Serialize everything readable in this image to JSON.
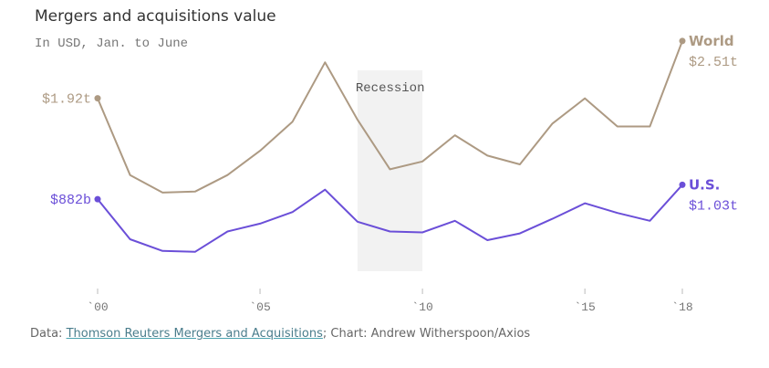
{
  "chart_data": {
    "type": "line",
    "title": "Mergers and acquisitions value",
    "subtitle": "In USD, Jan. to June",
    "x": [
      2000,
      2001,
      2002,
      2003,
      2004,
      2005,
      2006,
      2007,
      2008,
      2009,
      2010,
      2011,
      2012,
      2013,
      2014,
      2015,
      2016,
      2017,
      2018
    ],
    "xlim": [
      2000,
      2018
    ],
    "ylim": [
      0,
      2.8
    ],
    "x_ticks": [
      {
        "value": 2000,
        "label": "`00"
      },
      {
        "value": 2005,
        "label": "`05"
      },
      {
        "value": 2010,
        "label": "`10"
      },
      {
        "value": 2015,
        "label": "`15"
      },
      {
        "value": 2018,
        "label": "`18"
      }
    ],
    "shaded_region": {
      "label": "Recession",
      "start": 2008,
      "end": 2010,
      "color": "#f2f2f2"
    },
    "series": [
      {
        "name": "World",
        "color": "#ad9a83",
        "start_label": "$1.92t",
        "end_label": "$2.51t",
        "values": [
          1.92,
          1.13,
          0.95,
          0.96,
          1.13,
          1.38,
          1.68,
          2.29,
          1.7,
          1.19,
          1.27,
          1.54,
          1.33,
          1.24,
          1.66,
          1.92,
          1.63,
          1.63,
          2.51
        ]
      },
      {
        "name": "U.S.",
        "color": "#6b4fd8",
        "start_label": "$882b",
        "end_label": "$1.03t",
        "values": [
          0.882,
          0.47,
          0.35,
          0.34,
          0.55,
          0.63,
          0.75,
          0.98,
          0.65,
          0.55,
          0.54,
          0.66,
          0.46,
          0.53,
          0.68,
          0.84,
          0.74,
          0.66,
          1.03
        ]
      }
    ]
  },
  "footer": {
    "prefix": "Data: ",
    "source": "Thomson Reuters Mergers and Acquisitions",
    "suffix": "; Chart: Andrew Witherspoon/Axios"
  }
}
